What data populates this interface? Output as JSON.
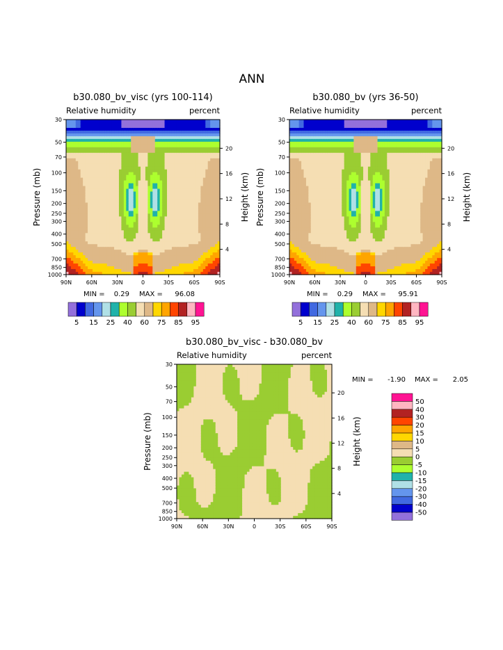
{
  "main_title": "ANN",
  "palettes": {
    "top": [
      "#9370db",
      "#0000cd",
      "#4169e1",
      "#6495ed",
      "#b0e0e6",
      "#20b2aa",
      "#adff2f",
      "#9acd32",
      "#f5deb3",
      "#deb887",
      "#ffd700",
      "#ffa500",
      "#ff4500",
      "#b22222",
      "#ffb6c1",
      "#ff1493"
    ],
    "diff": [
      "#9370db",
      "#0000cd",
      "#4169e1",
      "#6495ed",
      "#b0e0e6",
      "#20b2aa",
      "#adff2f",
      "#9acd32",
      "#f5deb3",
      "#deb887",
      "#ffd700",
      "#ffa500",
      "#ff4500",
      "#b22222",
      "#ffb6c1",
      "#ff1493"
    ]
  },
  "chart_data": [
    {
      "type": "heatmap",
      "title": "b30.080_bv_visc (yrs 100-114)",
      "left_subtitle": "Relative humidity",
      "right_subtitle": "percent",
      "ylabel": "Pressure (mb)",
      "y2label": "Height (km)",
      "xticks": [
        "90N",
        "60N",
        "30N",
        "0",
        "30S",
        "60S",
        "90S"
      ],
      "yticks": [
        "30",
        "50",
        "70",
        "100",
        "150",
        "200",
        "250",
        "300",
        "400",
        "500",
        "700",
        "850",
        "1000"
      ],
      "y2ticks": [
        "20",
        "16",
        "12",
        "8",
        "4"
      ],
      "stats": {
        "min_label": "MIN =",
        "min": "0.29",
        "max_label": "MAX =",
        "max": "96.08"
      },
      "legend_labels": [
        "5",
        "15",
        "25",
        "40",
        "60",
        "75",
        "85",
        "95"
      ]
    },
    {
      "type": "heatmap",
      "title": "b30.080_bv (yrs 36-50)",
      "left_subtitle": "Relative humidity",
      "right_subtitle": "percent",
      "ylabel": "Pressure (mb)",
      "y2label": "Height (km)",
      "xticks": [
        "90N",
        "60N",
        "30N",
        "0",
        "30S",
        "60S",
        "90S"
      ],
      "yticks": [
        "30",
        "50",
        "70",
        "100",
        "150",
        "200",
        "250",
        "300",
        "400",
        "500",
        "700",
        "850",
        "1000"
      ],
      "y2ticks": [
        "20",
        "16",
        "12",
        "8",
        "4"
      ],
      "stats": {
        "min_label": "MIN =",
        "min": "0.29",
        "max_label": "MAX =",
        "max": "95.91"
      },
      "legend_labels": [
        "5",
        "15",
        "25",
        "40",
        "60",
        "75",
        "85",
        "95"
      ]
    },
    {
      "type": "heatmap",
      "title": "b30.080_bv_visc - b30.080_bv",
      "left_subtitle": "Relative humidity",
      "right_subtitle": "percent",
      "ylabel": "Pressure (mb)",
      "y2label": "Height (km)",
      "xticks": [
        "90N",
        "60N",
        "30N",
        "0",
        "30S",
        "60S",
        "90S"
      ],
      "yticks": [
        "30",
        "50",
        "70",
        "100",
        "150",
        "200",
        "250",
        "300",
        "400",
        "500",
        "700",
        "850",
        "1000"
      ],
      "y2ticks": [
        "20",
        "16",
        "12",
        "8",
        "4"
      ],
      "stats": {
        "min_label": "MIN =",
        "min": "-1.90",
        "max_label": "MAX =",
        "max": "2.05"
      },
      "legend_labels": [
        "50",
        "40",
        "30",
        "20",
        "15",
        "10",
        "5",
        "0",
        "-5",
        "-10",
        "-15",
        "-20",
        "-30",
        "-40",
        "-50"
      ]
    }
  ]
}
